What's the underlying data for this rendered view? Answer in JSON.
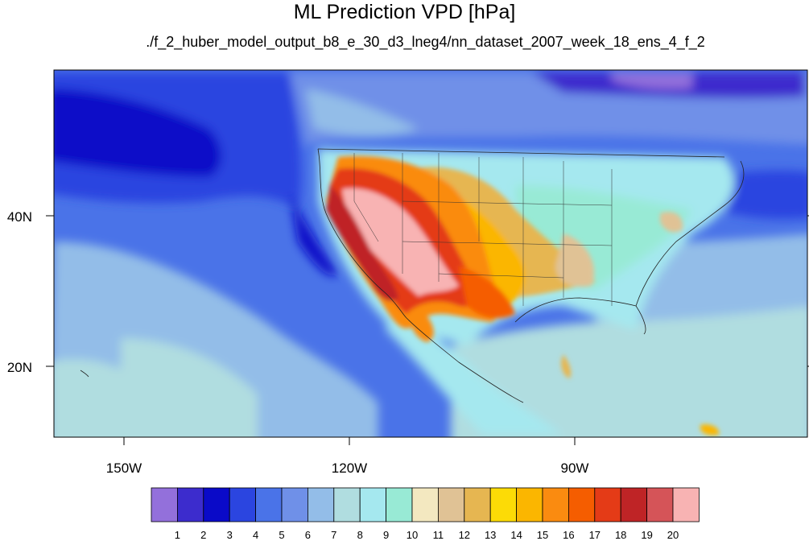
{
  "title": "ML Prediction VPD [hPa]",
  "subtitle": "./f_2_huber_model_output_b8_e_30_d3_lneg4/nn_dataset_2007_week_18_ens_4_f_2",
  "map": {
    "lat_ticks": [
      "40N",
      "20N"
    ],
    "lon_ticks": [
      "150W",
      "120W",
      "90W"
    ]
  },
  "colorbar": {
    "labels": [
      "1",
      "2",
      "3",
      "4",
      "5",
      "6",
      "7",
      "8",
      "9",
      "10",
      "11",
      "12",
      "13",
      "14",
      "15",
      "16",
      "17",
      "18",
      "19",
      "20"
    ],
    "colors": [
      "#9370db",
      "#3c2ccd",
      "#0a0ac8",
      "#2b45e0",
      "#4a73e8",
      "#6f90e8",
      "#93bde8",
      "#b0dde0",
      "#a5e8ef",
      "#98ead5",
      "#f3e8c0",
      "#e0c295",
      "#e6b651",
      "#fcdb06",
      "#fbb600",
      "#fa8b10",
      "#f55d00",
      "#e43b17",
      "#bf2426",
      "#d55458",
      "#f8b3b3"
    ]
  }
}
